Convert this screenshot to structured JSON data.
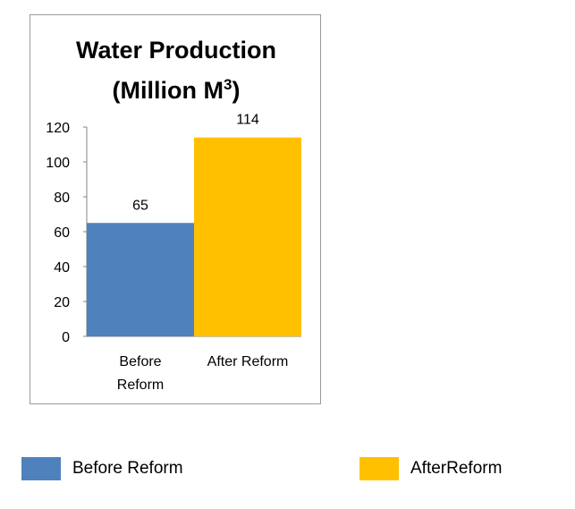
{
  "chart_data": {
    "type": "bar",
    "title_lines": [
      "Water Production",
      "(Million M",
      "3",
      ")"
    ],
    "categories": [
      [
        "Before",
        "Reform"
      ],
      [
        "After Reform"
      ]
    ],
    "series": [
      {
        "name": "Before Reform",
        "values": [
          65,
          null
        ],
        "color": "#4f81bd"
      },
      {
        "name": "AfterReform",
        "values": [
          null,
          114
        ],
        "color": "#ffc000"
      }
    ],
    "data_labels": [
      "65",
      "114"
    ],
    "yticks": [
      0,
      20,
      40,
      60,
      80,
      100,
      120
    ],
    "ylim": [
      0,
      120
    ],
    "grid": false,
    "legend_position": "bottom"
  },
  "legend": [
    {
      "label": "Before Reform",
      "color": "#4f81bd"
    },
    {
      "label": "AfterReform",
      "color": "#ffc000"
    }
  ]
}
